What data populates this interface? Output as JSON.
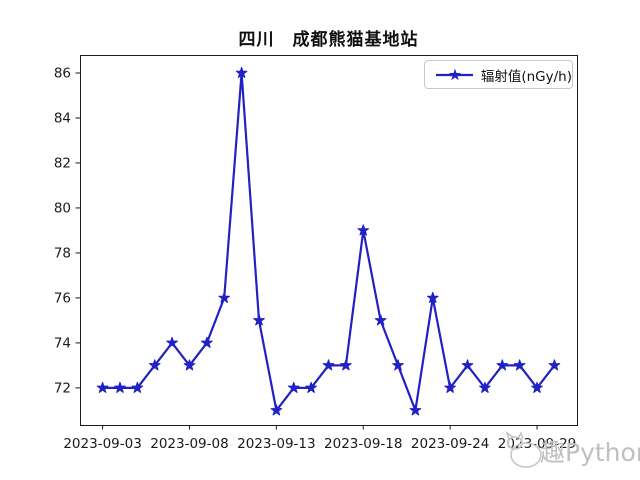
{
  "figure": {
    "watermark_text": "趣Python",
    "watermark_color": "#c0c0c0"
  },
  "legend": {
    "label": "辐射值(nGy/h)",
    "position": "upper right"
  },
  "chart_data": {
    "type": "line",
    "title": "四川　成都熊猫基地站",
    "series": [
      {
        "name": "辐射值(nGy/h)",
        "values": [
          72,
          72,
          72,
          73,
          74,
          73,
          74,
          76,
          86,
          75,
          71,
          72,
          72,
          73,
          73,
          79,
          75,
          73,
          71,
          76,
          72,
          73,
          72,
          73,
          73,
          72,
          73
        ]
      }
    ],
    "n_points": 27,
    "x_tick_indices": [
      0,
      5,
      10,
      15,
      20,
      25
    ],
    "x_tick_labels": [
      "2023-09-03",
      "2023-09-08",
      "2023-09-13",
      "2023-09-18",
      "2023-09-24",
      "2023-09-29"
    ],
    "y_ticks": [
      72,
      74,
      76,
      78,
      80,
      82,
      84,
      86
    ],
    "ylim": [
      70.35,
      86.8
    ],
    "xlabel": "",
    "ylabel": "",
    "grid": false,
    "line_color": "#2121c4",
    "axis_color": "#1a1a1a",
    "marker": "star",
    "legend_position": "upper right"
  }
}
